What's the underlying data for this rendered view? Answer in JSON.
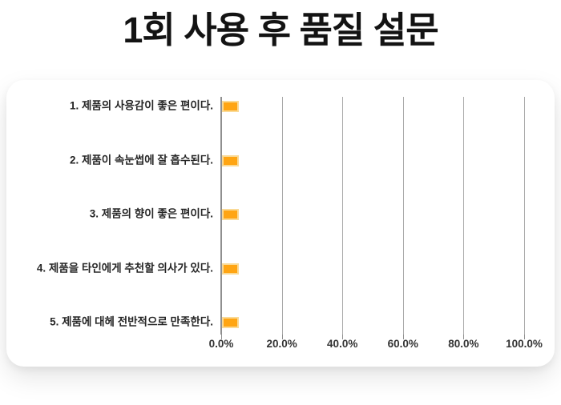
{
  "title": "1회 사용 후 품질 설문",
  "chart_data": {
    "type": "bar",
    "orientation": "horizontal",
    "title": "1회 사용 후 품질 설문",
    "categories": [
      "1. 제품의 사용감이 좋은 편이다.",
      "2. 제품이 속눈썹에 잘 흡수된다.",
      "3. 제품의 향이 좋은 편이다.",
      "4. 제품을 타인에게 추천할 의사가 있다.",
      "5. 제품에 대헤 전반적으로 만족한다."
    ],
    "values": [
      5.5,
      5.5,
      5.5,
      5.5,
      5.5
    ],
    "xlim": [
      0,
      100
    ],
    "x_tick_labels": [
      "0.0%",
      "20.0%",
      "40.0%",
      "60.0%",
      "80.0%",
      "100.0%"
    ],
    "grid": true,
    "legend": false,
    "bar_color": "#FFA513",
    "bar_border_color": "#FADA96",
    "gridline_color": "#A9A9A9",
    "axis_color": "#8F8F8F",
    "label_color": "#262626"
  }
}
